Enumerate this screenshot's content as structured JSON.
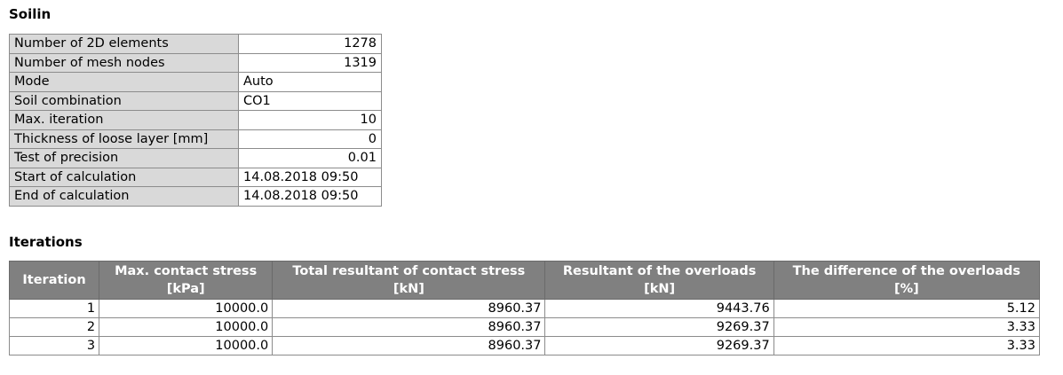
{
  "soilin": {
    "title": "Soilin",
    "rows": [
      {
        "label": "Number of 2D elements",
        "value": "1278",
        "align": "num"
      },
      {
        "label": "Number of mesh nodes",
        "value": "1319",
        "align": "num"
      },
      {
        "label": "Mode",
        "value": "Auto",
        "align": "txt"
      },
      {
        "label": "Soil combination",
        "value": "CO1",
        "align": "txt"
      },
      {
        "label": "Max. iteration",
        "value": "10",
        "align": "num"
      },
      {
        "label": "Thickness of loose layer [mm]",
        "value": "0",
        "align": "num"
      },
      {
        "label": "Test of precision",
        "value": "0.01",
        "align": "num"
      },
      {
        "label": "Start of calculation",
        "value": "14.08.2018 09:50",
        "align": "txt"
      },
      {
        "label": "End of calculation",
        "value": "14.08.2018 09:50",
        "align": "txt"
      }
    ]
  },
  "iterations": {
    "title": "Iterations",
    "headers": [
      {
        "line1": "Iteration",
        "line2": ""
      },
      {
        "line1": "Max. contact stress",
        "line2": "[kPa]"
      },
      {
        "line1": "Total resultant of contact stress",
        "line2": "[kN]"
      },
      {
        "line1": "Resultant of the overloads",
        "line2": "[kN]"
      },
      {
        "line1": "The difference of the overloads",
        "line2": "[%]"
      }
    ],
    "rows": [
      [
        "1",
        "10000.0",
        "8960.37",
        "9443.76",
        "5.12"
      ],
      [
        "2",
        "10000.0",
        "8960.37",
        "9269.37",
        "3.33"
      ],
      [
        "3",
        "10000.0",
        "8960.37",
        "9269.37",
        "3.33"
      ]
    ]
  }
}
